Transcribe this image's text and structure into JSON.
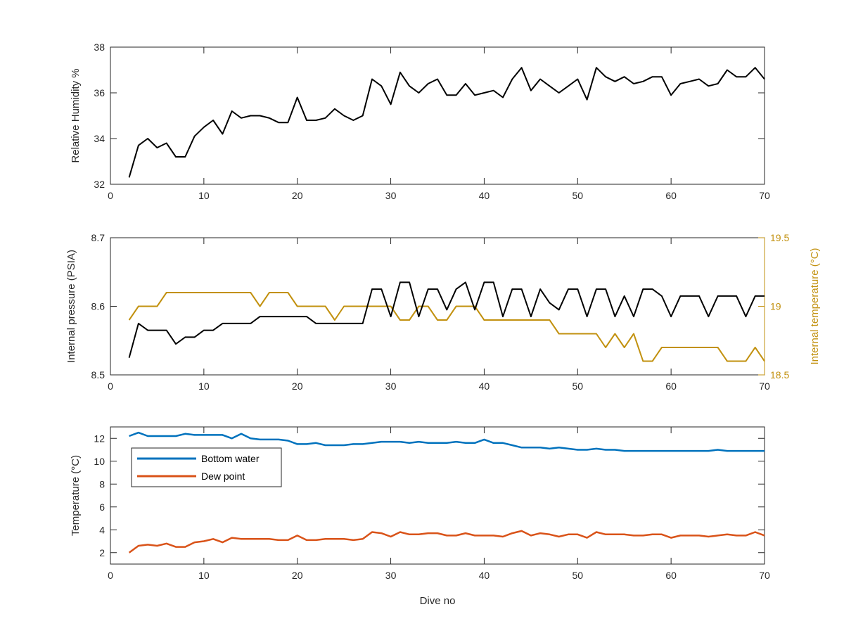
{
  "chart_data": [
    {
      "type": "line",
      "title": "",
      "xlabel": "",
      "ylabel": "Relative Humidity %",
      "xlim": [
        0,
        70
      ],
      "ylim": [
        32,
        38
      ],
      "xticks": [
        "0",
        "10",
        "20",
        "30",
        "40",
        "50",
        "60",
        "70"
      ],
      "yticks": [
        "32",
        "34",
        "36",
        "38"
      ],
      "grid": false,
      "color": "#000000",
      "x": [
        2,
        3,
        4,
        5,
        6,
        7,
        8,
        9,
        10,
        11,
        12,
        13,
        14,
        15,
        16,
        17,
        18,
        19,
        20,
        21,
        22,
        23,
        24,
        25,
        26,
        27,
        28,
        29,
        30,
        31,
        32,
        33,
        34,
        35,
        36,
        37,
        38,
        39,
        40,
        41,
        42,
        43,
        44,
        45,
        46,
        47,
        48,
        49,
        50,
        51,
        52,
        53,
        54,
        55,
        56,
        57,
        58,
        59,
        60,
        61,
        62,
        63,
        64,
        65,
        66,
        67,
        68,
        69,
        70
      ],
      "y": [
        32.3,
        33.7,
        34.0,
        33.6,
        33.8,
        33.2,
        33.2,
        34.1,
        34.5,
        34.8,
        34.2,
        35.2,
        34.9,
        35.0,
        35.0,
        34.9,
        34.7,
        34.7,
        35.8,
        34.8,
        34.8,
        34.9,
        35.3,
        35.0,
        34.8,
        35.0,
        36.6,
        36.3,
        35.5,
        36.9,
        36.3,
        36.0,
        36.4,
        36.6,
        35.9,
        35.9,
        36.4,
        35.9,
        36.0,
        36.1,
        35.8,
        36.6,
        37.1,
        36.1,
        36.6,
        36.3,
        36.0,
        36.3,
        36.6,
        35.7,
        37.1,
        36.7,
        36.5,
        36.7,
        36.4,
        36.5,
        36.7,
        36.7,
        35.9,
        36.4,
        36.5,
        36.6,
        36.3,
        36.4,
        37.0,
        36.7,
        36.7,
        37.1,
        36.6
      ]
    },
    {
      "type": "line",
      "title": "",
      "xlabel": "",
      "xlim": [
        0,
        70
      ],
      "xticks": [
        "0",
        "10",
        "20",
        "30",
        "40",
        "50",
        "60",
        "70"
      ],
      "grid": false,
      "left_axis": {
        "label": "Internal pressure (PSIA)",
        "ylim": [
          8.5,
          8.7
        ],
        "ticks": [
          "8.5",
          "8.6",
          "8.7"
        ],
        "color": "#000000"
      },
      "right_axis": {
        "label": "Internal temperature (°C)",
        "ylim": [
          18.5,
          19.5
        ],
        "ticks": [
          "18.5",
          "19",
          "19.5"
        ],
        "color": "#C2910F"
      },
      "series": [
        {
          "axis": "left",
          "color": "#000000",
          "x": [
            2,
            3,
            4,
            5,
            6,
            7,
            8,
            9,
            10,
            11,
            12,
            13,
            14,
            15,
            16,
            17,
            18,
            19,
            20,
            21,
            22,
            23,
            24,
            25,
            26,
            27,
            28,
            29,
            30,
            31,
            32,
            33,
            34,
            35,
            36,
            37,
            38,
            39,
            40,
            41,
            42,
            43,
            44,
            45,
            46,
            47,
            48,
            49,
            50,
            51,
            52,
            53,
            54,
            55,
            56,
            57,
            58,
            59,
            60,
            61,
            62,
            63,
            64,
            65,
            66,
            67,
            68,
            69,
            70
          ],
          "y": [
            8.525,
            8.575,
            8.565,
            8.565,
            8.565,
            8.545,
            8.555,
            8.555,
            8.565,
            8.565,
            8.575,
            8.575,
            8.575,
            8.575,
            8.585,
            8.585,
            8.585,
            8.585,
            8.585,
            8.585,
            8.575,
            8.575,
            8.575,
            8.575,
            8.575,
            8.575,
            8.625,
            8.625,
            8.585,
            8.635,
            8.635,
            8.585,
            8.625,
            8.625,
            8.595,
            8.625,
            8.635,
            8.595,
            8.635,
            8.635,
            8.585,
            8.625,
            8.625,
            8.585,
            8.625,
            8.605,
            8.595,
            8.625,
            8.625,
            8.585,
            8.625,
            8.625,
            8.585,
            8.615,
            8.585,
            8.625,
            8.625,
            8.615,
            8.585,
            8.615,
            8.615,
            8.615,
            8.585,
            8.615,
            8.615,
            8.615,
            8.585,
            8.615,
            8.615
          ]
        },
        {
          "axis": "right",
          "color": "#C2910F",
          "x": [
            2,
            3,
            4,
            5,
            6,
            7,
            8,
            9,
            10,
            11,
            12,
            13,
            14,
            15,
            16,
            17,
            18,
            19,
            20,
            21,
            22,
            23,
            24,
            25,
            26,
            27,
            28,
            29,
            30,
            31,
            32,
            33,
            34,
            35,
            36,
            37,
            38,
            39,
            40,
            41,
            42,
            43,
            44,
            45,
            46,
            47,
            48,
            49,
            50,
            51,
            52,
            53,
            54,
            55,
            56,
            57,
            58,
            59,
            60,
            61,
            62,
            63,
            64,
            65,
            66,
            67,
            68,
            69,
            70
          ],
          "y": [
            18.9,
            19.0,
            19.0,
            19.0,
            19.1,
            19.1,
            19.1,
            19.1,
            19.1,
            19.1,
            19.1,
            19.1,
            19.1,
            19.1,
            19.0,
            19.1,
            19.1,
            19.1,
            19.0,
            19.0,
            19.0,
            19.0,
            18.9,
            19.0,
            19.0,
            19.0,
            19.0,
            19.0,
            19.0,
            18.9,
            18.9,
            19.0,
            19.0,
            18.9,
            18.9,
            19.0,
            19.0,
            19.0,
            18.9,
            18.9,
            18.9,
            18.9,
            18.9,
            18.9,
            18.9,
            18.9,
            18.8,
            18.8,
            18.8,
            18.8,
            18.8,
            18.7,
            18.8,
            18.7,
            18.8,
            18.6,
            18.6,
            18.7,
            18.7,
            18.7,
            18.7,
            18.7,
            18.7,
            18.7,
            18.6,
            18.6,
            18.6,
            18.7,
            18.6
          ]
        }
      ]
    },
    {
      "type": "line",
      "title": "",
      "xlabel": "Dive no",
      "ylabel": "Temperature (°C)",
      "xlim": [
        0,
        70
      ],
      "ylim": [
        1,
        13
      ],
      "xticks": [
        "0",
        "10",
        "20",
        "30",
        "40",
        "50",
        "60",
        "70"
      ],
      "yticks": [
        "2",
        "4",
        "6",
        "8",
        "10",
        "12"
      ],
      "grid": false,
      "legend": "top-left",
      "series": [
        {
          "name": "Bottom water",
          "color": "#0072BD",
          "x": [
            2,
            3,
            4,
            5,
            6,
            7,
            8,
            9,
            10,
            11,
            12,
            13,
            14,
            15,
            16,
            17,
            18,
            19,
            20,
            21,
            22,
            23,
            24,
            25,
            26,
            27,
            28,
            29,
            30,
            31,
            32,
            33,
            34,
            35,
            36,
            37,
            38,
            39,
            40,
            41,
            42,
            43,
            44,
            45,
            46,
            47,
            48,
            49,
            50,
            51,
            52,
            53,
            54,
            55,
            56,
            57,
            58,
            59,
            60,
            61,
            62,
            63,
            64,
            65,
            66,
            67,
            68,
            69,
            70
          ],
          "y": [
            12.2,
            12.5,
            12.2,
            12.2,
            12.2,
            12.2,
            12.4,
            12.3,
            12.3,
            12.3,
            12.3,
            12.0,
            12.4,
            12.0,
            11.9,
            11.9,
            11.9,
            11.8,
            11.5,
            11.5,
            11.6,
            11.4,
            11.4,
            11.4,
            11.5,
            11.5,
            11.6,
            11.7,
            11.7,
            11.7,
            11.6,
            11.7,
            11.6,
            11.6,
            11.6,
            11.7,
            11.6,
            11.6,
            11.9,
            11.6,
            11.6,
            11.4,
            11.2,
            11.2,
            11.2,
            11.1,
            11.2,
            11.1,
            11.0,
            11.0,
            11.1,
            11.0,
            11.0,
            10.9,
            10.9,
            10.9,
            10.9,
            10.9,
            10.9,
            10.9,
            10.9,
            10.9,
            10.9,
            11.0,
            10.9,
            10.9,
            10.9,
            10.9,
            10.9
          ]
        },
        {
          "name": "Dew point",
          "color": "#D95319",
          "x": [
            2,
            3,
            4,
            5,
            6,
            7,
            8,
            9,
            10,
            11,
            12,
            13,
            14,
            15,
            16,
            17,
            18,
            19,
            20,
            21,
            22,
            23,
            24,
            25,
            26,
            27,
            28,
            29,
            30,
            31,
            32,
            33,
            34,
            35,
            36,
            37,
            38,
            39,
            40,
            41,
            42,
            43,
            44,
            45,
            46,
            47,
            48,
            49,
            50,
            51,
            52,
            53,
            54,
            55,
            56,
            57,
            58,
            59,
            60,
            61,
            62,
            63,
            64,
            65,
            66,
            67,
            68,
            69,
            70
          ],
          "y": [
            2.0,
            2.6,
            2.7,
            2.6,
            2.8,
            2.5,
            2.5,
            2.9,
            3.0,
            3.2,
            2.9,
            3.3,
            3.2,
            3.2,
            3.2,
            3.2,
            3.1,
            3.1,
            3.5,
            3.1,
            3.1,
            3.2,
            3.2,
            3.2,
            3.1,
            3.2,
            3.8,
            3.7,
            3.4,
            3.8,
            3.6,
            3.6,
            3.7,
            3.7,
            3.5,
            3.5,
            3.7,
            3.5,
            3.5,
            3.5,
            3.4,
            3.7,
            3.9,
            3.5,
            3.7,
            3.6,
            3.4,
            3.6,
            3.6,
            3.3,
            3.8,
            3.6,
            3.6,
            3.6,
            3.5,
            3.5,
            3.6,
            3.6,
            3.3,
            3.5,
            3.5,
            3.5,
            3.4,
            3.5,
            3.6,
            3.5,
            3.5,
            3.8,
            3.5
          ]
        }
      ]
    }
  ]
}
